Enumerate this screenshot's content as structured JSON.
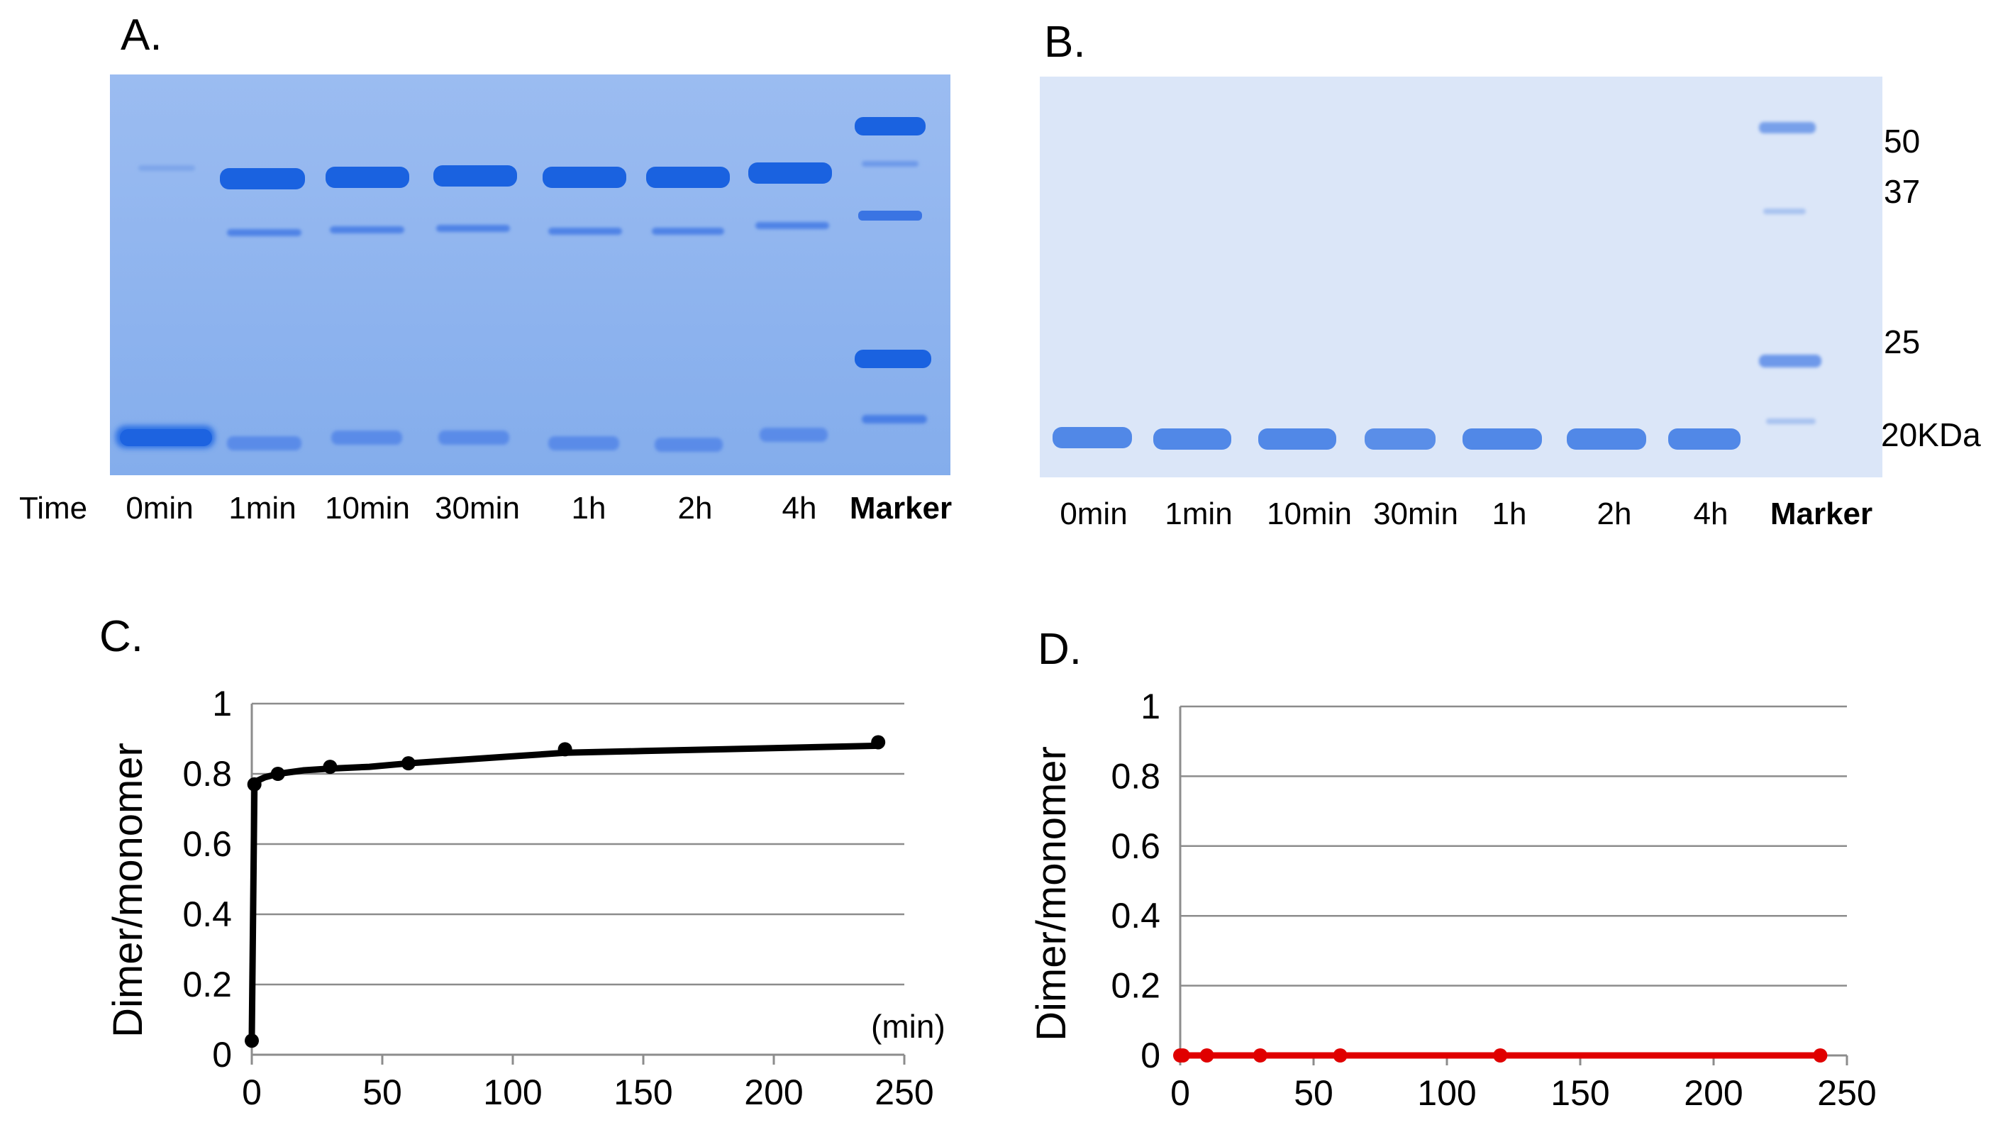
{
  "panels": {
    "a": {
      "letter": "A.",
      "time_label": "Time",
      "lanes": [
        "0min",
        "1min",
        "10min",
        "30min",
        "1h",
        "2h",
        "4h",
        "Marker"
      ]
    },
    "b": {
      "letter": "B.",
      "lanes": [
        "0min",
        "1min",
        "10min",
        "30min",
        "1h",
        "2h",
        "4h",
        "Marker"
      ],
      "marker_kda": [
        "50",
        "37",
        "25",
        "20KDa"
      ]
    },
    "c": {
      "letter": "C."
    },
    "d": {
      "letter": "D."
    }
  },
  "colors": {
    "gel_a_background": "#8fb4ef",
    "gel_b_background": "#dbe6f8",
    "band": "#1a62e0",
    "series_c": "#000000",
    "series_d": "#e00000",
    "grid": "#8c8c8c"
  },
  "chart_data": [
    {
      "type": "scatter",
      "panel": "C.",
      "title": "",
      "xlabel": "(min)",
      "ylabel": "Dimer/monomer",
      "xlim": [
        0,
        250
      ],
      "ylim": [
        0,
        1
      ],
      "xticks": [
        0,
        50,
        100,
        150,
        200,
        250
      ],
      "yticks": [
        0,
        0.2,
        0.4,
        0.6,
        0.8,
        1
      ],
      "grid": true,
      "series": [
        {
          "name": "Dimer/monomer",
          "color": "#000000",
          "x": [
            0,
            1,
            10,
            30,
            60,
            120,
            240
          ],
          "y": [
            0.04,
            0.77,
            0.8,
            0.82,
            0.83,
            0.87,
            0.89
          ],
          "trend": {
            "x": [
              0,
              1,
              2,
              5,
              10,
              20,
              30,
              45,
              60,
              80,
              100,
              120,
              150,
              180,
              210,
              240
            ],
            "y": [
              0.05,
              0.76,
              0.78,
              0.79,
              0.8,
              0.81,
              0.815,
              0.82,
              0.83,
              0.84,
              0.85,
              0.86,
              0.865,
              0.87,
              0.875,
              0.88
            ]
          }
        }
      ]
    },
    {
      "type": "scatter",
      "panel": "D.",
      "title": "",
      "xlabel": "",
      "ylabel": "Dimer/monomer",
      "xlim": [
        0,
        250
      ],
      "ylim": [
        0,
        1
      ],
      "xticks": [
        0,
        50,
        100,
        150,
        200,
        250
      ],
      "yticks": [
        0,
        0.2,
        0.4,
        0.6,
        0.8,
        1
      ],
      "grid": true,
      "series": [
        {
          "name": "Dimer/monomer",
          "color": "#e00000",
          "x": [
            0,
            1,
            10,
            30,
            60,
            120,
            240
          ],
          "y": [
            0,
            0,
            0,
            0,
            0,
            0,
            0
          ],
          "trend": {
            "x": [
              0,
              240
            ],
            "y": [
              0,
              0
            ]
          }
        }
      ]
    }
  ]
}
